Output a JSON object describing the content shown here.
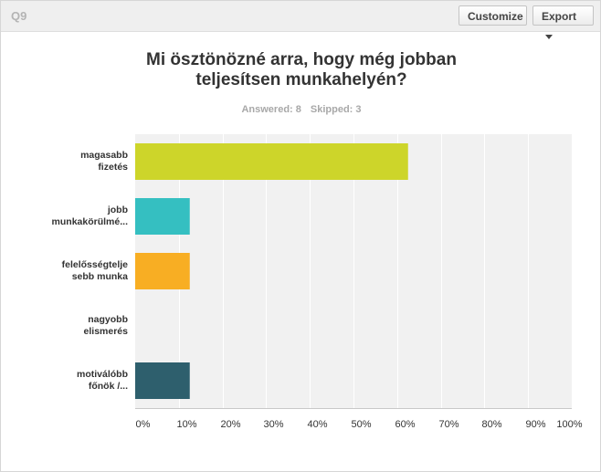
{
  "header": {
    "question_label": "Q9",
    "customize_label": "Customize",
    "export_label": "Export"
  },
  "chart_data": {
    "type": "bar",
    "orientation": "horizontal",
    "title_lines": [
      "Mi ösztönözné arra, hogy még jobban",
      "teljesítsen munkahelyén?"
    ],
    "answered": "Answered: 8",
    "skipped": "Skipped: 3",
    "categories": [
      [
        "magasabb",
        "fizetés"
      ],
      [
        "jobb",
        "munkakörülmé..."
      ],
      [
        "felelősségtelje",
        "sebb munka"
      ],
      [
        "nagyobb",
        "elismerés"
      ],
      [
        "motiválóbb",
        "főnök /..."
      ]
    ],
    "values": [
      62.5,
      12.5,
      12.5,
      0,
      12.5
    ],
    "colors": [
      "#cdd52a",
      "#35bfc1",
      "#f8ae23",
      "#e65c4f",
      "#2e5f6d"
    ],
    "xlim": [
      0,
      100
    ],
    "ticks": [
      "0%",
      "10%",
      "20%",
      "30%",
      "40%",
      "50%",
      "60%",
      "70%",
      "80%",
      "90%",
      "100%"
    ],
    "grid": true
  }
}
